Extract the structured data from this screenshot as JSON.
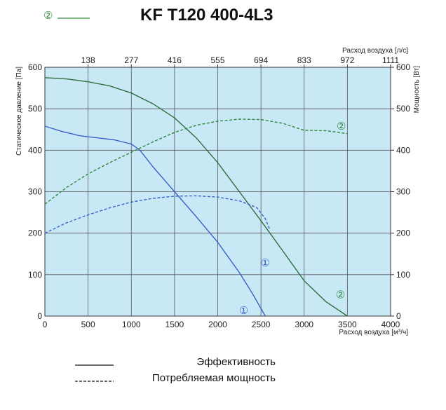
{
  "chart_data": {
    "type": "line",
    "title": "KF T120 400-4L3",
    "title_marker": "②",
    "x_bottom": {
      "label": "Расход воздуха [м³/ч]",
      "range": [
        0,
        4000
      ],
      "ticks": [
        0,
        500,
        1000,
        1500,
        2000,
        2500,
        3000,
        3500,
        4000
      ]
    },
    "x_top": {
      "label": "Расход воздуха [л/с]",
      "ticks": [
        "138",
        "277",
        "416",
        "555",
        "694",
        "833",
        "972",
        "1111"
      ]
    },
    "y_left": {
      "label": "Статическое давление [Па]",
      "range": [
        0,
        600
      ],
      "ticks": [
        0,
        100,
        200,
        300,
        400,
        500,
        600
      ]
    },
    "y_right": {
      "label": "Мощность [Вт]",
      "range": [
        0,
        600
      ],
      "ticks": [
        0,
        100,
        200,
        300,
        400,
        500,
        600
      ]
    },
    "grid": true,
    "series": [
      {
        "name": "①",
        "kind": "pressure",
        "color": "#3a62c8",
        "style": "solid",
        "points": [
          [
            0,
            458
          ],
          [
            200,
            445
          ],
          [
            400,
            435
          ],
          [
            600,
            430
          ],
          [
            800,
            425
          ],
          [
            1000,
            415
          ],
          [
            1100,
            400
          ],
          [
            1250,
            360
          ],
          [
            1500,
            300
          ],
          [
            1750,
            240
          ],
          [
            2000,
            178
          ],
          [
            2250,
            105
          ],
          [
            2400,
            55
          ],
          [
            2550,
            0
          ]
        ]
      },
      {
        "name": "②",
        "kind": "pressure",
        "color": "#2e6e3c",
        "style": "solid",
        "points": [
          [
            0,
            575
          ],
          [
            250,
            572
          ],
          [
            500,
            565
          ],
          [
            750,
            555
          ],
          [
            1000,
            538
          ],
          [
            1250,
            512
          ],
          [
            1500,
            478
          ],
          [
            1750,
            430
          ],
          [
            2000,
            370
          ],
          [
            2250,
            300
          ],
          [
            2500,
            230
          ],
          [
            2750,
            158
          ],
          [
            3000,
            85
          ],
          [
            3250,
            35
          ],
          [
            3500,
            0
          ]
        ]
      },
      {
        "name": "①",
        "kind": "power",
        "color": "#3a62c8",
        "style": "dashed",
        "points": [
          [
            0,
            200
          ],
          [
            250,
            225
          ],
          [
            500,
            244
          ],
          [
            750,
            261
          ],
          [
            1000,
            275
          ],
          [
            1250,
            284
          ],
          [
            1500,
            289
          ],
          [
            1750,
            290
          ],
          [
            2000,
            287
          ],
          [
            2250,
            278
          ],
          [
            2450,
            262
          ],
          [
            2550,
            235
          ],
          [
            2600,
            210
          ]
        ]
      },
      {
        "name": "②",
        "kind": "power",
        "color": "#2e8a3a",
        "style": "dashed",
        "points": [
          [
            0,
            270
          ],
          [
            250,
            310
          ],
          [
            500,
            343
          ],
          [
            750,
            370
          ],
          [
            1000,
            395
          ],
          [
            1250,
            420
          ],
          [
            1500,
            443
          ],
          [
            1750,
            460
          ],
          [
            2000,
            470
          ],
          [
            2250,
            475
          ],
          [
            2500,
            474
          ],
          [
            2750,
            465
          ],
          [
            3000,
            448
          ],
          [
            3250,
            447
          ],
          [
            3500,
            440
          ]
        ]
      }
    ],
    "curve_labels": [
      {
        "text": "①",
        "x": 2550,
        "y": 130,
        "color": "#3a62c8"
      },
      {
        "text": "①",
        "x": 2300,
        "y": 15,
        "color": "#3a62c8"
      },
      {
        "text": "②",
        "x": 3430,
        "y": 460,
        "color": "#2e8a3a"
      },
      {
        "text": "②",
        "x": 3420,
        "y": 53,
        "color": "#2e8a3a"
      }
    ],
    "legend": {
      "placement": "bottom",
      "items": [
        {
          "label": "Эффективность",
          "style": "solid"
        },
        {
          "label": "Потребляемая мощность",
          "style": "dashed"
        }
      ]
    },
    "colors": {
      "plot_background": "#c9e8f6",
      "grid": "#555555"
    }
  }
}
